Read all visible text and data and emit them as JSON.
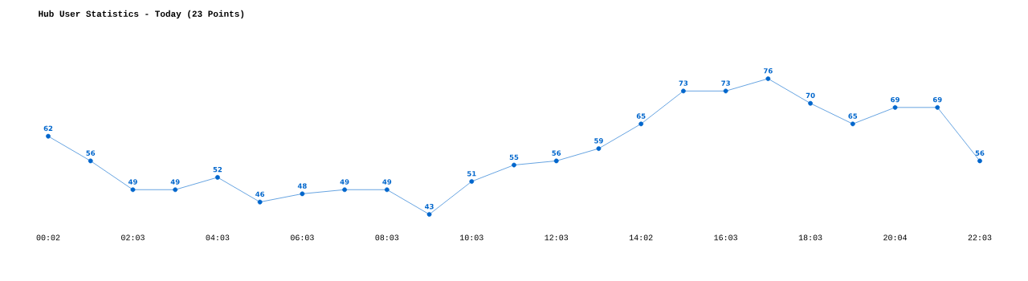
{
  "chart_data": {
    "type": "line",
    "title": "Hub User Statistics - Today (23 Points)",
    "categories": [
      "00:02",
      null,
      "02:03",
      null,
      "04:03",
      null,
      "06:03",
      null,
      "08:03",
      null,
      "10:03",
      null,
      "12:03",
      null,
      "14:02",
      null,
      "16:03",
      null,
      "18:03",
      null,
      "20:04",
      null,
      "22:03"
    ],
    "values": [
      62,
      56,
      49,
      49,
      52,
      46,
      48,
      49,
      49,
      43,
      51,
      55,
      56,
      59,
      65,
      73,
      73,
      76,
      70,
      65,
      69,
      69,
      56
    ],
    "color": "#0066cc",
    "marker": "circle",
    "data_labels": true
  }
}
